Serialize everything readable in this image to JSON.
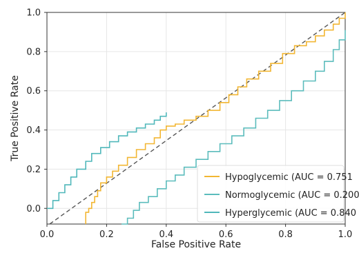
{
  "chart_data": {
    "type": "line",
    "xlabel": "False Positive Rate",
    "ylabel": "True Positive Rate",
    "xlim": [
      0,
      1
    ],
    "ylim": [
      -0.08,
      1
    ],
    "xticks": [
      "0.0",
      "0.2",
      "0.4",
      "0.6",
      "0.8",
      "1.0"
    ],
    "yticks": [
      "0.0",
      "0.2",
      "0.4",
      "0.6",
      "0.8",
      "1.0"
    ],
    "grid": true,
    "legend_position": "bottom-right",
    "diagonal_reference": true,
    "series": [
      {
        "name": "Hypoglycemic (AUC = 0.751",
        "color": "#f2b632",
        "points": [
          [
            0.13,
            -0.08
          ],
          [
            0.13,
            -0.02
          ],
          [
            0.14,
            0.0
          ],
          [
            0.15,
            0.03
          ],
          [
            0.16,
            0.06
          ],
          [
            0.17,
            0.09
          ],
          [
            0.18,
            0.13
          ],
          [
            0.2,
            0.16
          ],
          [
            0.22,
            0.19
          ],
          [
            0.24,
            0.22
          ],
          [
            0.27,
            0.26
          ],
          [
            0.3,
            0.3
          ],
          [
            0.33,
            0.33
          ],
          [
            0.36,
            0.36
          ],
          [
            0.38,
            0.4
          ],
          [
            0.4,
            0.42
          ],
          [
            0.43,
            0.43
          ],
          [
            0.46,
            0.45
          ],
          [
            0.5,
            0.47
          ],
          [
            0.54,
            0.5
          ],
          [
            0.58,
            0.54
          ],
          [
            0.61,
            0.58
          ],
          [
            0.64,
            0.62
          ],
          [
            0.67,
            0.66
          ],
          [
            0.71,
            0.7
          ],
          [
            0.75,
            0.74
          ],
          [
            0.79,
            0.79
          ],
          [
            0.83,
            0.83
          ],
          [
            0.87,
            0.85
          ],
          [
            0.9,
            0.88
          ],
          [
            0.93,
            0.91
          ],
          [
            0.96,
            0.94
          ],
          [
            0.98,
            0.97
          ],
          [
            1.0,
            1.0
          ]
        ]
      },
      {
        "name": "Normoglycemic (AUC = 0.200",
        "color": "#5bbcbc",
        "points": [
          [
            0.25,
            -0.08
          ],
          [
            0.27,
            -0.05
          ],
          [
            0.29,
            -0.01
          ],
          [
            0.31,
            0.03
          ],
          [
            0.34,
            0.06
          ],
          [
            0.37,
            0.1
          ],
          [
            0.4,
            0.14
          ],
          [
            0.43,
            0.17
          ],
          [
            0.46,
            0.21
          ],
          [
            0.5,
            0.25
          ],
          [
            0.54,
            0.29
          ],
          [
            0.58,
            0.33
          ],
          [
            0.62,
            0.37
          ],
          [
            0.66,
            0.41
          ],
          [
            0.7,
            0.46
          ],
          [
            0.74,
            0.5
          ],
          [
            0.78,
            0.55
          ],
          [
            0.82,
            0.6
          ],
          [
            0.86,
            0.65
          ],
          [
            0.9,
            0.7
          ],
          [
            0.93,
            0.75
          ],
          [
            0.96,
            0.81
          ],
          [
            0.98,
            0.86
          ],
          [
            1.0,
            0.91
          ]
        ]
      },
      {
        "name": "Hyperglycemic (AUC = 0.840",
        "color": "#4fb7ba",
        "points": [
          [
            0.0,
            0.0
          ],
          [
            0.02,
            0.04
          ],
          [
            0.04,
            0.08
          ],
          [
            0.06,
            0.12
          ],
          [
            0.08,
            0.16
          ],
          [
            0.1,
            0.2
          ],
          [
            0.13,
            0.24
          ],
          [
            0.15,
            0.28
          ],
          [
            0.18,
            0.31
          ],
          [
            0.21,
            0.34
          ],
          [
            0.24,
            0.37
          ],
          [
            0.27,
            0.39
          ],
          [
            0.3,
            0.41
          ],
          [
            0.33,
            0.43
          ],
          [
            0.36,
            0.45
          ],
          [
            0.38,
            0.47
          ],
          [
            0.4,
            0.49
          ]
        ]
      }
    ]
  }
}
